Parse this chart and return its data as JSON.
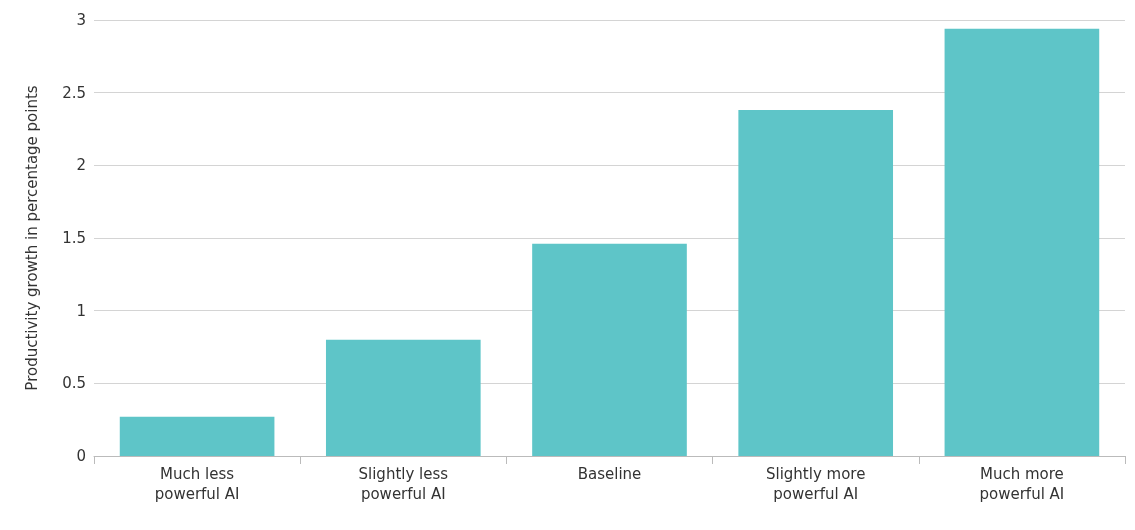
{
  "chart_data": {
    "type": "bar",
    "ylabel": "Productivity growth in percentage points",
    "categories": [
      "Much less\npowerful AI",
      "Slightly less\npowerful AI",
      "Baseline",
      "Slightly more\npowerful AI",
      "Much more\npowerful AI"
    ],
    "values": [
      0.27,
      0.8,
      1.46,
      2.38,
      2.94
    ],
    "color": "#5ec5c8",
    "ylim": [
      0,
      3
    ],
    "yticks": [
      0,
      0.5,
      1,
      1.5,
      2,
      2.5,
      3
    ],
    "grid": "y"
  }
}
